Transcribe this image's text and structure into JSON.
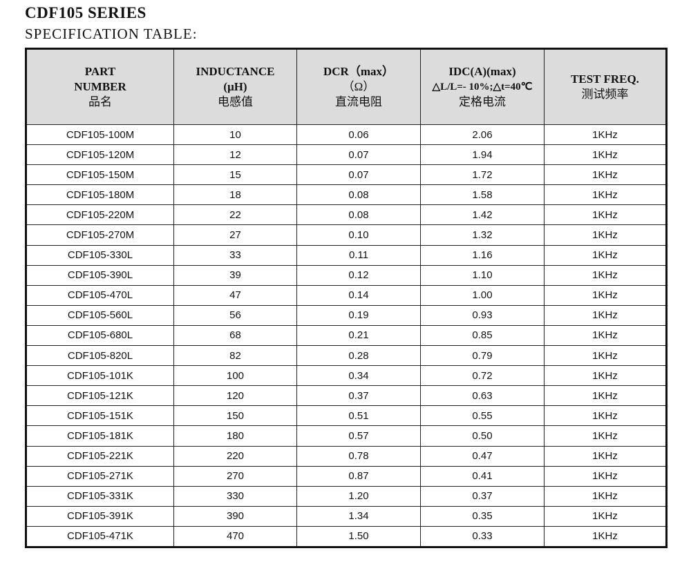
{
  "title": "CDF105 SERIES",
  "subtitle": "SPECIFICATION TABLE:",
  "headers": [
    {
      "l1": "PART",
      "l2": "NUMBER",
      "cn": "品名"
    },
    {
      "l1": "INDUCTANCE",
      "l2": "(μH)",
      "cn": "电感值"
    },
    {
      "l1": "DCR（max）",
      "l2": "（Ω）",
      "cn": "直流电阻"
    },
    {
      "l1": "IDC(A)(max)",
      "l2": "△L/L=- 10%;△t=40℃",
      "cn": "定格电流"
    },
    {
      "l1": "TEST FREQ.",
      "l2": "",
      "cn": "测试频率"
    }
  ],
  "rows": [
    [
      "CDF105-100M",
      "10",
      "0.06",
      "2.06",
      "1KHz"
    ],
    [
      "CDF105-120M",
      "12",
      "0.07",
      "1.94",
      "1KHz"
    ],
    [
      "CDF105-150M",
      "15",
      "0.07",
      "1.72",
      "1KHz"
    ],
    [
      "CDF105-180M",
      "18",
      "0.08",
      "1.58",
      "1KHz"
    ],
    [
      "CDF105-220M",
      "22",
      "0.08",
      "1.42",
      "1KHz"
    ],
    [
      "CDF105-270M",
      "27",
      "0.10",
      "1.32",
      "1KHz"
    ],
    [
      "CDF105-330L",
      "33",
      "0.11",
      "1.16",
      "1KHz"
    ],
    [
      "CDF105-390L",
      "39",
      "0.12",
      "1.10",
      "1KHz"
    ],
    [
      "CDF105-470L",
      "47",
      "0.14",
      "1.00",
      "1KHz"
    ],
    [
      "CDF105-560L",
      "56",
      "0.19",
      "0.93",
      "1KHz"
    ],
    [
      "CDF105-680L",
      "68",
      "0.21",
      "0.85",
      "1KHz"
    ],
    [
      "CDF105-820L",
      "82",
      "0.28",
      "0.79",
      "1KHz"
    ],
    [
      "CDF105-101K",
      "100",
      "0.34",
      "0.72",
      "1KHz"
    ],
    [
      "CDF105-121K",
      "120",
      "0.37",
      "0.63",
      "1KHz"
    ],
    [
      "CDF105-151K",
      "150",
      "0.51",
      "0.55",
      "1KHz"
    ],
    [
      "CDF105-181K",
      "180",
      "0.57",
      "0.50",
      "1KHz"
    ],
    [
      "CDF105-221K",
      "220",
      "0.78",
      "0.47",
      "1KHz"
    ],
    [
      "CDF105-271K",
      "270",
      "0.87",
      "0.41",
      "1KHz"
    ],
    [
      "CDF105-331K",
      "330",
      "1.20",
      "0.37",
      "1KHz"
    ],
    [
      "CDF105-391K",
      "390",
      "1.34",
      "0.35",
      "1KHz"
    ],
    [
      "CDF105-471K",
      "470",
      "1.50",
      "0.33",
      "1KHz"
    ]
  ]
}
